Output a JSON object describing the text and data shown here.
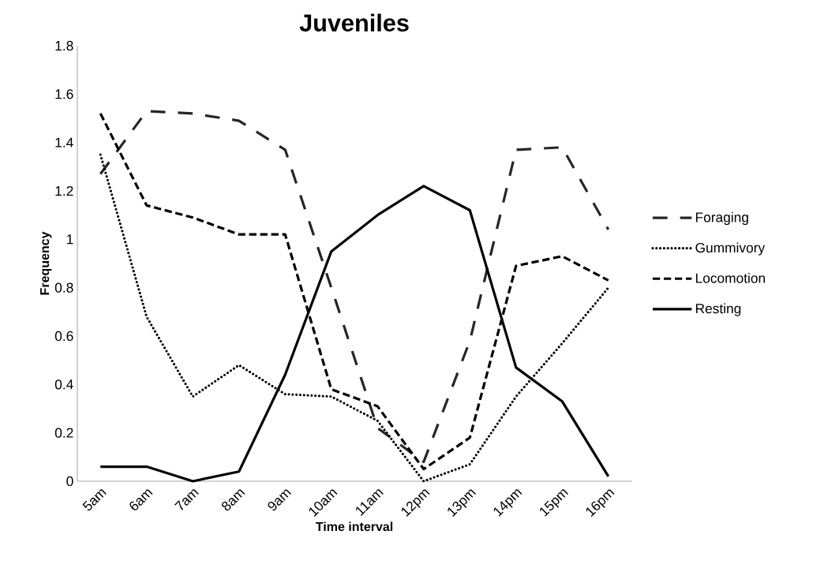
{
  "chart_data": {
    "type": "line",
    "title": "Juveniles",
    "xlabel": "Time interval",
    "ylabel": "Frequency",
    "categories": [
      "5am",
      "6am",
      "7am",
      "8am",
      "9am",
      "10am",
      "11am",
      "12pm",
      "13pm",
      "14pm",
      "15pm",
      "16pm"
    ],
    "series": [
      {
        "name": "Foraging",
        "color": "#262626",
        "line_style": "dashdot",
        "values": [
          1.27,
          1.53,
          1.52,
          1.49,
          1.37,
          0.8,
          0.22,
          0.08,
          0.58,
          1.37,
          1.38,
          1.04
        ]
      },
      {
        "name": "Gummivory",
        "color": "#000000",
        "line_style": "dotted",
        "values": [
          1.35,
          0.68,
          0.35,
          0.48,
          0.36,
          0.35,
          0.25,
          0.0,
          0.07,
          0.35,
          0.57,
          0.8
        ]
      },
      {
        "name": "Locomotion",
        "color": "#000000",
        "line_style": "dashed",
        "values": [
          1.52,
          1.14,
          1.09,
          1.02,
          1.02,
          0.38,
          0.31,
          0.05,
          0.18,
          0.89,
          0.93,
          0.83
        ]
      },
      {
        "name": "Resting",
        "color": "#000000",
        "line_style": "solid",
        "values": [
          0.06,
          0.06,
          0.0,
          0.04,
          0.44,
          0.95,
          1.1,
          1.22,
          1.12,
          0.47,
          0.33,
          0.02
        ]
      }
    ],
    "ylim": [
      0,
      1.8
    ],
    "yticks": [
      0,
      0.2,
      0.4,
      0.6,
      0.8,
      1,
      1.2,
      1.4,
      1.6,
      1.8
    ],
    "grid": false,
    "legend": "right",
    "marker": "none"
  }
}
